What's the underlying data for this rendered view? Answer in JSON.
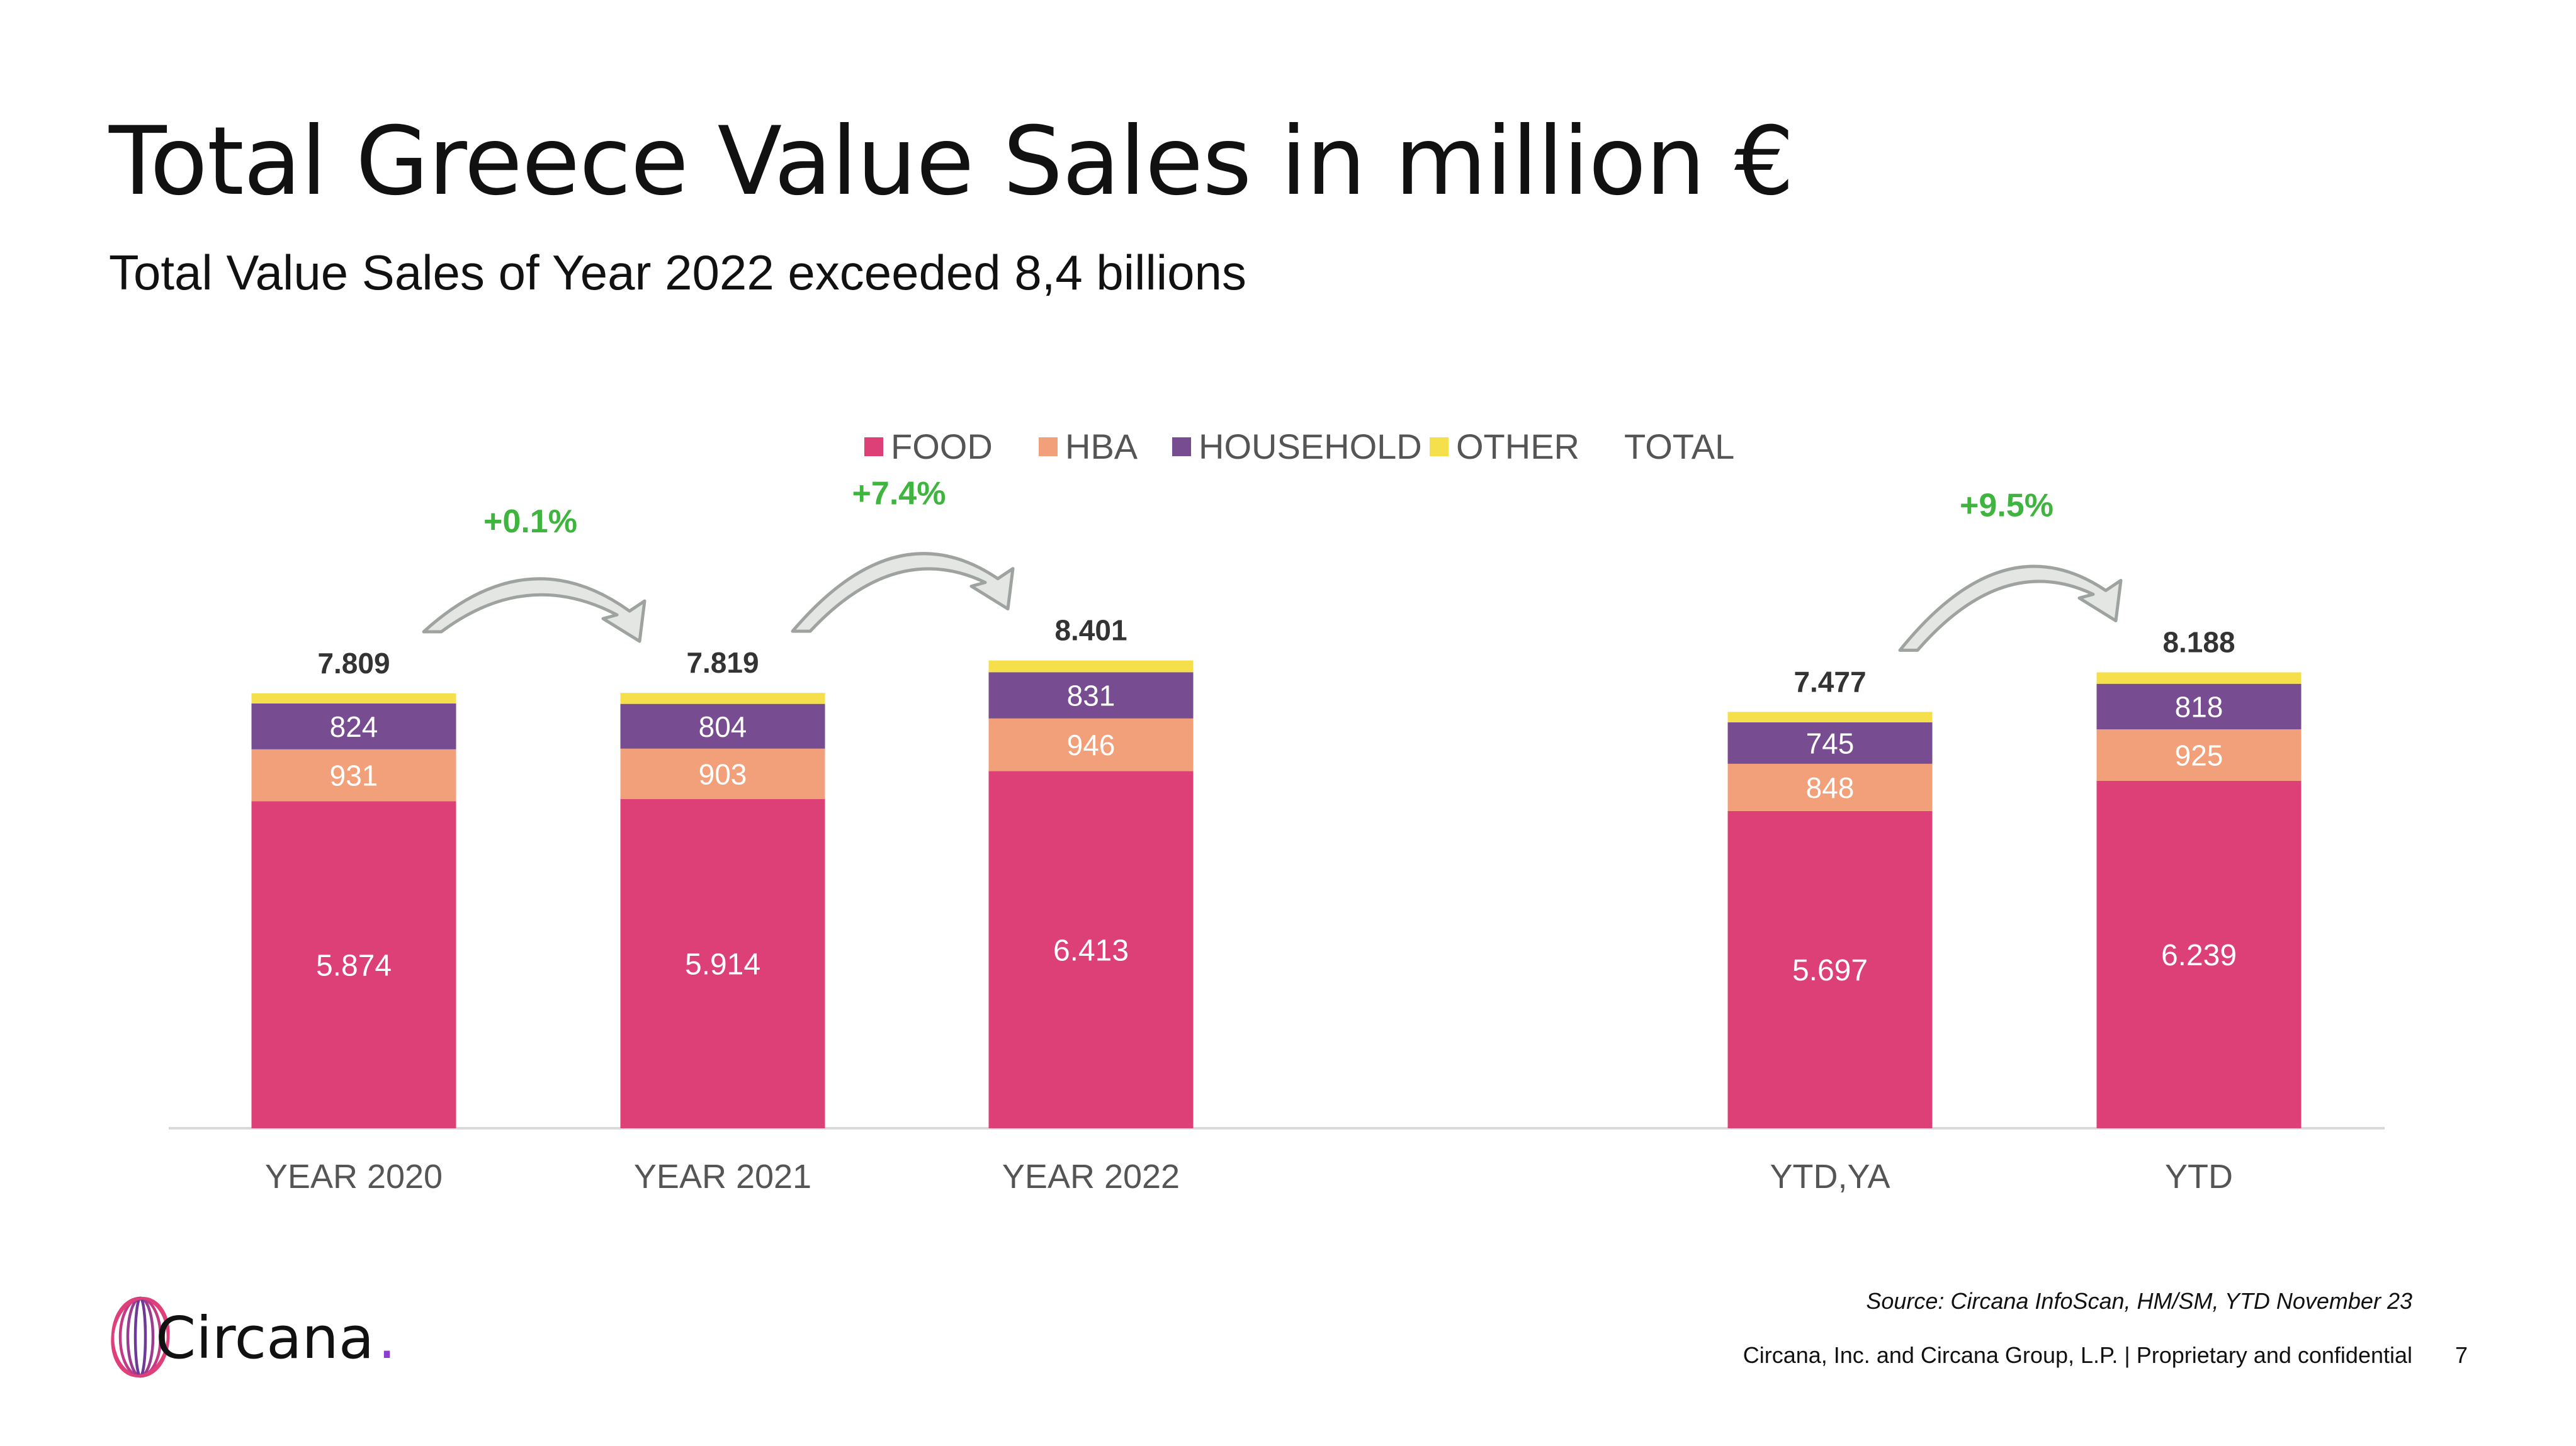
{
  "slide": {
    "title": "Total Greece Value Sales in million €",
    "subtitle": "Total Value Sales of Year 2022 exceeded 8,4 billions",
    "source": "Source: Circana InfoScan, HM/SM, YTD November 23",
    "footer": "Circana, Inc. and Circana Group, L.P. |  Proprietary and confidential",
    "page_number": "7",
    "logo_text": "Circana",
    "logo_dot": "."
  },
  "chart_data": {
    "type": "bar",
    "stacked": true,
    "categories": [
      "YEAR 2020",
      "YEAR 2021",
      "YEAR 2022",
      "YTD,YA",
      "YTD"
    ],
    "series": [
      {
        "name": "FOOD",
        "color": "#dc4077",
        "label_color": "#ffffff",
        "values": [
          5874,
          5914,
          6413,
          5697,
          6239
        ],
        "labels": [
          "5.874",
          "5.914",
          "6.413",
          "5.697",
          "6.239"
        ]
      },
      {
        "name": "HBA",
        "color": "#f1a07a",
        "label_color": "#ffffff",
        "values": [
          931,
          903,
          946,
          848,
          925
        ],
        "labels": [
          "931",
          "903",
          "946",
          "848",
          "925"
        ]
      },
      {
        "name": "HOUSEHOLD",
        "color": "#774c90",
        "label_color": "#ffffff",
        "values": [
          824,
          804,
          831,
          745,
          818
        ],
        "labels": [
          "824",
          "804",
          "831",
          "745",
          "818"
        ]
      },
      {
        "name": "OTHER",
        "color": "#f5e04b",
        "label_color": "#ffffff",
        "values": [
          180,
          198,
          211,
          187,
          206
        ],
        "labels": []
      }
    ],
    "total": {
      "name": "TOTAL",
      "values": [
        7809,
        7819,
        8401,
        7477,
        8188
      ],
      "labels": [
        "7.809",
        "7.819",
        "8.401",
        "7.477",
        "8.188"
      ]
    },
    "growth": [
      {
        "from": 0,
        "to": 1,
        "label": "+0.1%"
      },
      {
        "from": 1,
        "to": 2,
        "label": "+7.4%"
      },
      {
        "from": 3,
        "to": 4,
        "label": "+9.5%"
      }
    ],
    "legend_position": "top",
    "ylim": [
      0,
      8600
    ],
    "grid": false,
    "colors": {
      "growth": "#3fb53f",
      "axis": "#d9d9d9",
      "arrow_fill": "#e4e6e4",
      "arrow_stroke": "#9fa39f",
      "category_text": "#555555",
      "legend_text": "#555555",
      "total_text": "#333333"
    }
  }
}
